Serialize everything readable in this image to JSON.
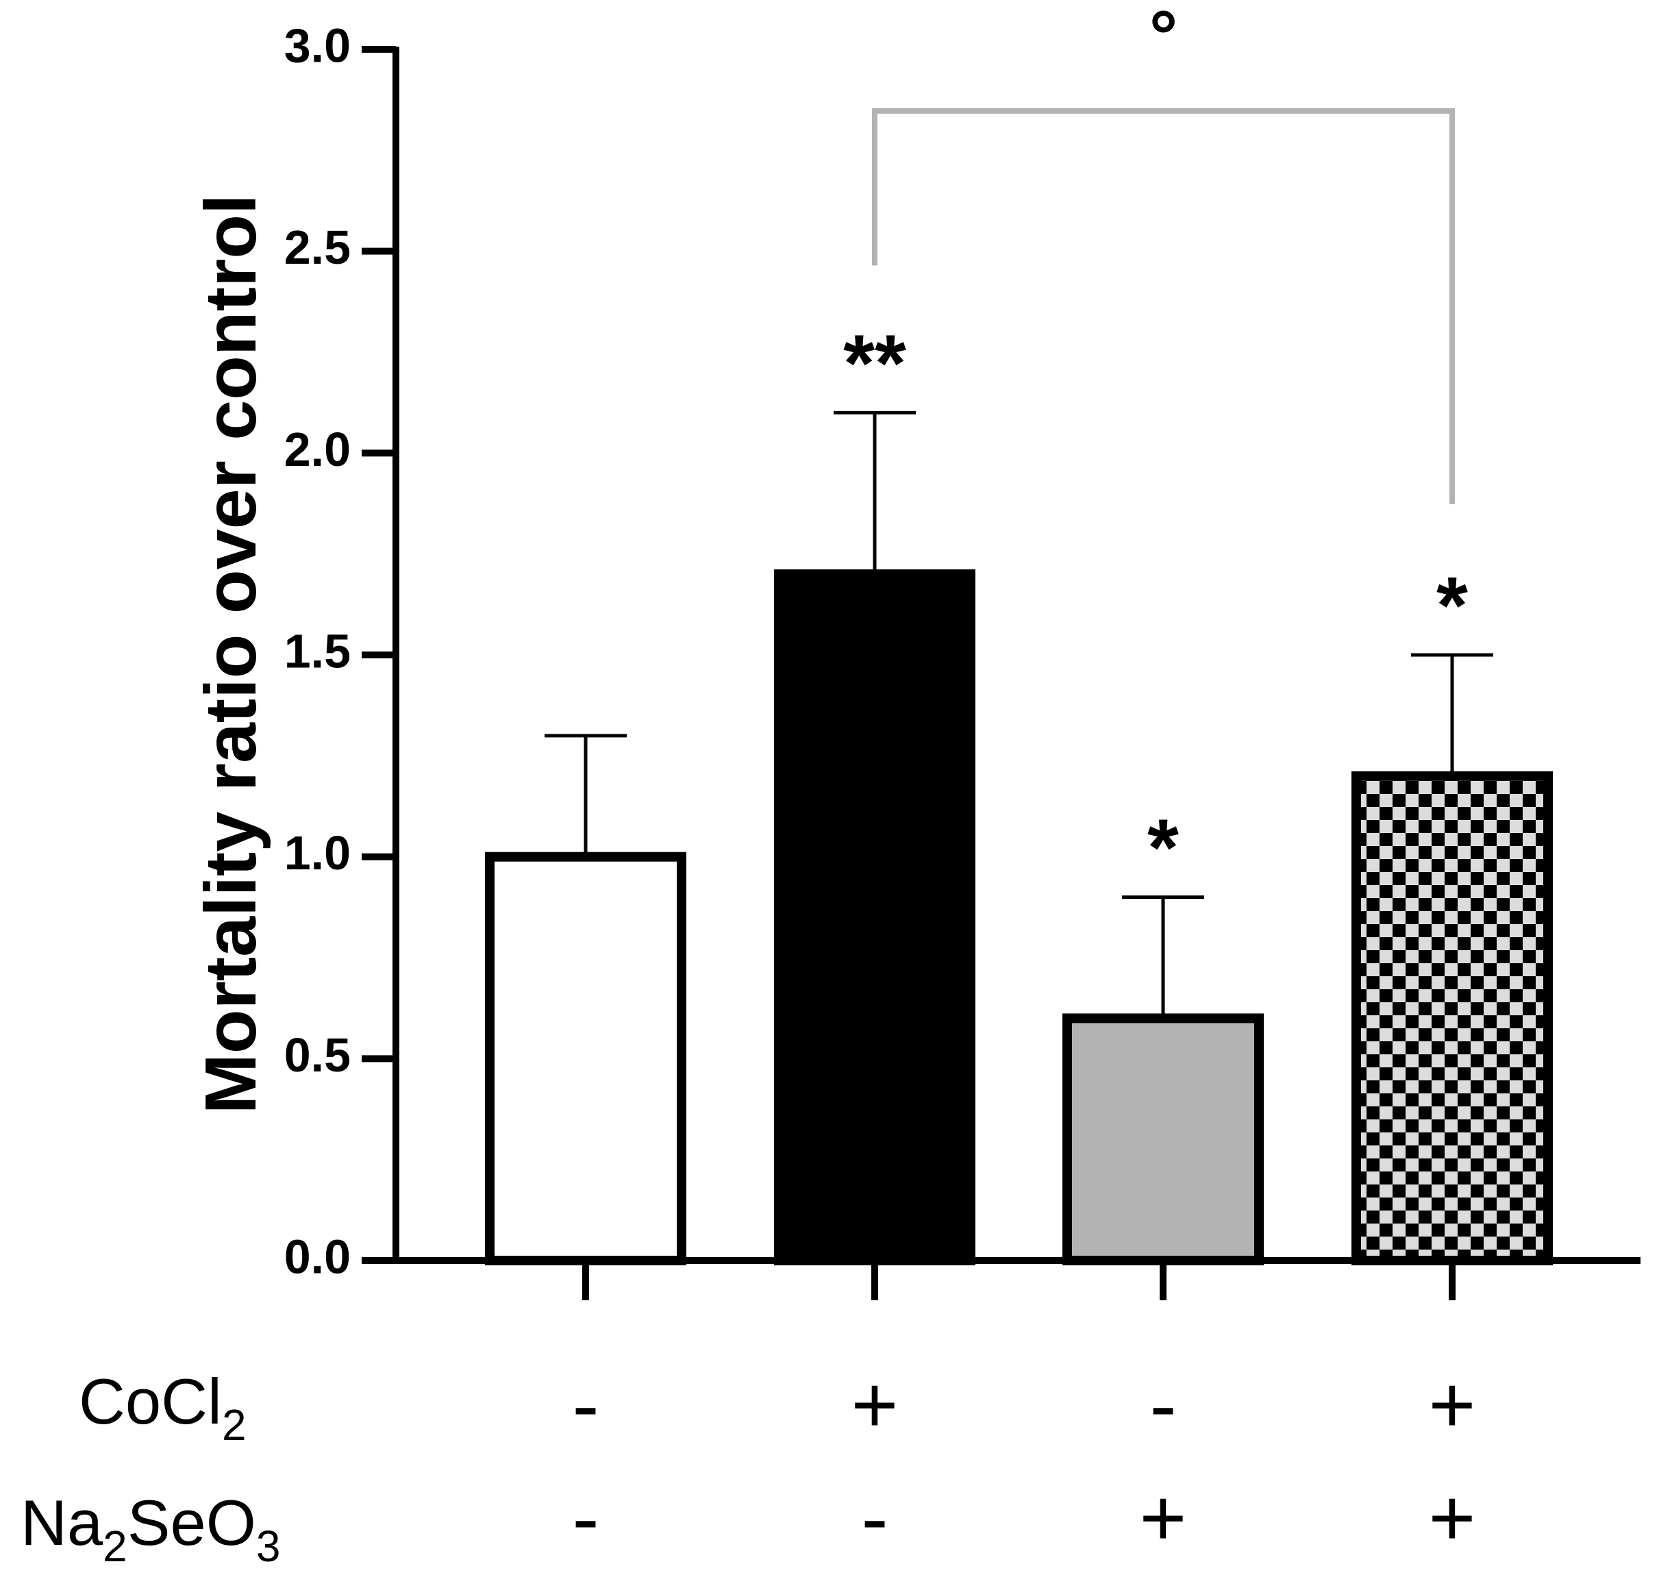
{
  "chart_data": {
    "type": "bar",
    "ylabel": "Mortality ratio over control",
    "ylim": [
      0,
      3.0
    ],
    "y_ticks": [
      "0.0",
      "0.5",
      "1.0",
      "1.5",
      "2.0",
      "2.5",
      "3.0"
    ],
    "grid": false,
    "bars": [
      {
        "value": 1.0,
        "error": 0.3,
        "fill": "#ffffff",
        "pattern": "none",
        "significance": "",
        "cocl2": "-",
        "na2seo3": "-"
      },
      {
        "value": 1.7,
        "error": 0.4,
        "fill": "#000000",
        "pattern": "none",
        "significance": "**",
        "cocl2": "+",
        "na2seo3": "-"
      },
      {
        "value": 0.6,
        "error": 0.3,
        "fill": "#b3b3b3",
        "pattern": "none",
        "significance": "*",
        "cocl2": "-",
        "na2seo3": "+"
      },
      {
        "value": 1.2,
        "error": 0.3,
        "fill": "#dcdcdc",
        "pattern": "checkerboard",
        "significance": "*",
        "cocl2": "+",
        "na2seo3": "+"
      }
    ],
    "comparison": {
      "from_bar": 1,
      "to_bar": 3,
      "symbol": "°",
      "color": "#b3b3b3"
    },
    "treatment_rows": [
      {
        "name": "CoCl",
        "subscript": "2",
        "key": "cocl2"
      },
      {
        "name_parts": [
          "Na",
          "2",
          "SeO",
          "3"
        ],
        "key": "na2seo3"
      }
    ]
  }
}
